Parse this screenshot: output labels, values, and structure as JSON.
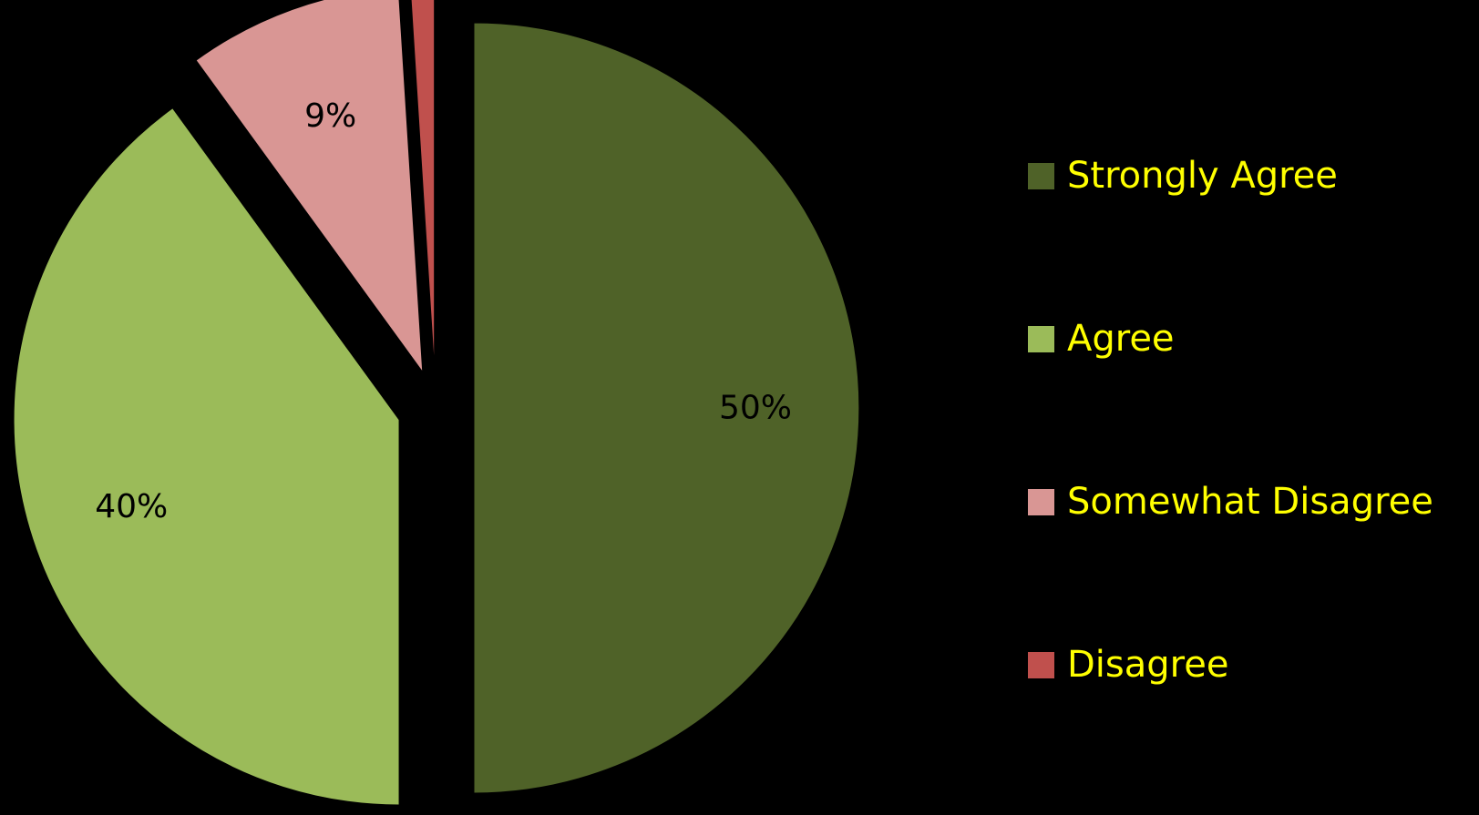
{
  "chart_data": {
    "type": "pie",
    "title": "",
    "categories": [
      "Strongly Agree",
      "Agree",
      "Somewhat Disagree",
      "Disagree"
    ],
    "values": [
      50,
      40,
      9,
      1
    ],
    "data_labels": [
      "50%",
      "40%",
      "9%",
      ""
    ],
    "colors": [
      "#4F6228",
      "#9BBB59",
      "#D99694",
      "#C0504D"
    ],
    "exploded": true,
    "legend": {
      "placement": "right",
      "text_color": "#FFFF00"
    },
    "label_color": "#000000",
    "background": "#000000"
  }
}
